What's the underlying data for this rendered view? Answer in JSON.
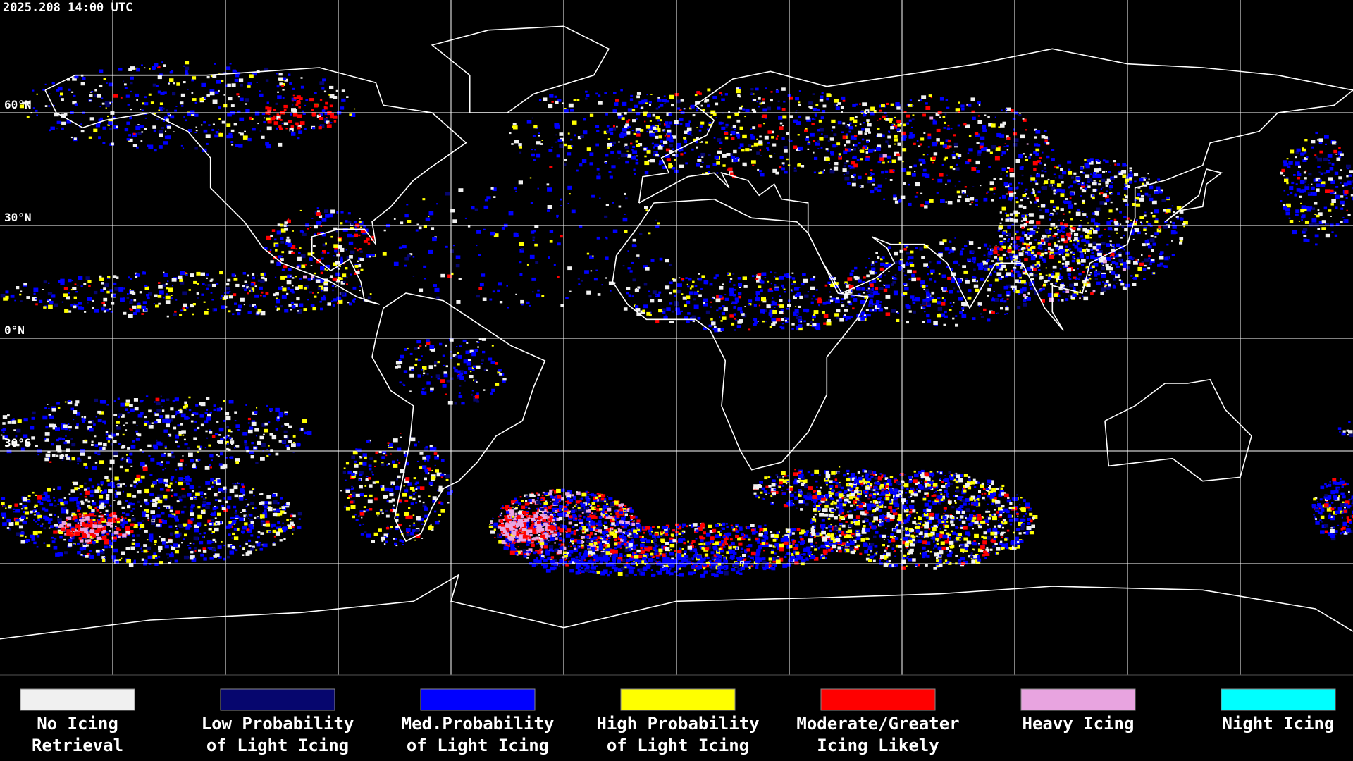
{
  "timestamp": "2025.208 14:00 UTC",
  "lat_labels": [
    {
      "lat": 60,
      "label": "60°N"
    },
    {
      "lat": 30,
      "label": "30°N"
    },
    {
      "lat": 0,
      "label": "0°N"
    },
    {
      "lat": -30,
      "label": "30°S"
    }
  ],
  "legend": [
    {
      "color": "#f0f0f0",
      "lines": [
        "No Icing",
        "Retrieval"
      ]
    },
    {
      "color": "#06066e",
      "lines": [
        "Low Probability",
        "of Light Icing"
      ]
    },
    {
      "color": "#0000ff",
      "lines": [
        "Med.Probability",
        "of Light Icing"
      ]
    },
    {
      "color": "#ffff00",
      "lines": [
        "High Probability",
        "of Light Icing"
      ]
    },
    {
      "color": "#ff0000",
      "lines": [
        "Moderate/Greater",
        "Icing Likely"
      ]
    },
    {
      "color": "#e8a4e0",
      "lines": [
        "Heavy Icing"
      ]
    },
    {
      "color": "#00ffff",
      "lines": [
        "Night Icing"
      ]
    }
  ]
}
